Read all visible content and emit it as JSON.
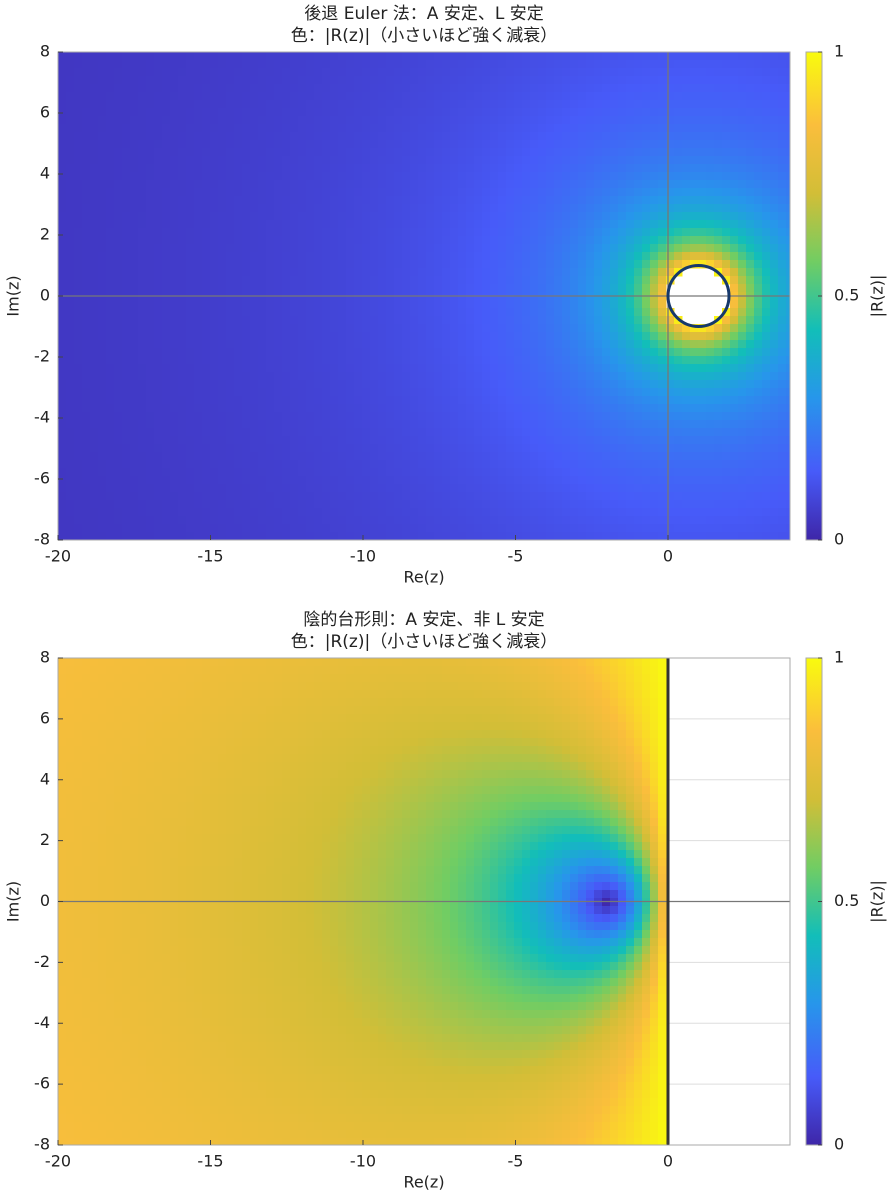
{
  "chart_data": [
    {
      "type": "heatmap",
      "title": "後退 Euler 法：A 安定、L 安定",
      "subtitle": "色：|R(z)|（小さいほど強く減衰）",
      "x_label": "Re(z)",
      "y_label": "Im(z)",
      "colorbar_label": "|R(z)|",
      "xlim": [
        -20,
        4
      ],
      "ylim": [
        -8,
        8
      ],
      "xticks": [
        -20,
        -15,
        -10,
        -5,
        0
      ],
      "yticks": [
        -8,
        -6,
        -4,
        -2,
        0,
        2,
        4,
        6,
        8
      ],
      "clim": [
        0,
        1
      ],
      "cticks": [
        0,
        0.5,
        1
      ],
      "grid": false
    },
    {
      "type": "heatmap",
      "title": "陰的台形則：A 安定、非 L 安定",
      "subtitle": "色：|R(z)|（小さいほど強く減衰）",
      "x_label": "Re(z)",
      "y_label": "Im(z)",
      "colorbar_label": "|R(z)|",
      "xlim": [
        -20,
        4
      ],
      "ylim": [
        -8,
        8
      ],
      "xticks": [
        -20,
        -15,
        -10,
        -5,
        0
      ],
      "yticks": [
        -8,
        -6,
        -4,
        -2,
        0,
        2,
        4,
        6,
        8
      ],
      "clim": [
        0,
        1
      ],
      "cticks": [
        0,
        0.5,
        1
      ],
      "grid": true
    }
  ]
}
